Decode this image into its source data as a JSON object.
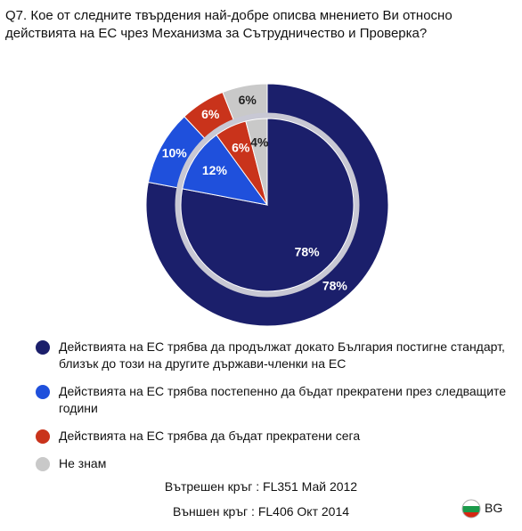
{
  "chart_data": {
    "type": "pie",
    "title": "Q7. Кое от следните твърдения най-добре описва мнението Ви относно действията на ЕС чрез Механизма за Сътрудничество и Проверка?",
    "categories": [
      "Действията на ЕС трябва да продължат докато България постигне стандарт, близък до този на другите държави-членки на ЕС",
      "Действията на ЕС трябва постепенно да бъдат прекратени през следващите години",
      "Действията на ЕС трябва да бъдат прекратени сега",
      "Не знам"
    ],
    "colors": [
      "#1b1f6b",
      "#1f50dc",
      "#c9331b",
      "#c9c9c9"
    ],
    "series": [
      {
        "name": "Вътрешен кръг :  FL351 Май 2012",
        "values": [
          78,
          12,
          6,
          4
        ],
        "value_labels": [
          "78%",
          "12%",
          "6%",
          "4%"
        ]
      },
      {
        "name": "Външен кръг :  FL406 Окт 2014",
        "values": [
          78,
          10,
          6,
          6
        ],
        "value_labels": [
          "78%",
          "10%",
          "6%",
          "6%"
        ]
      }
    ],
    "country": "BG"
  }
}
